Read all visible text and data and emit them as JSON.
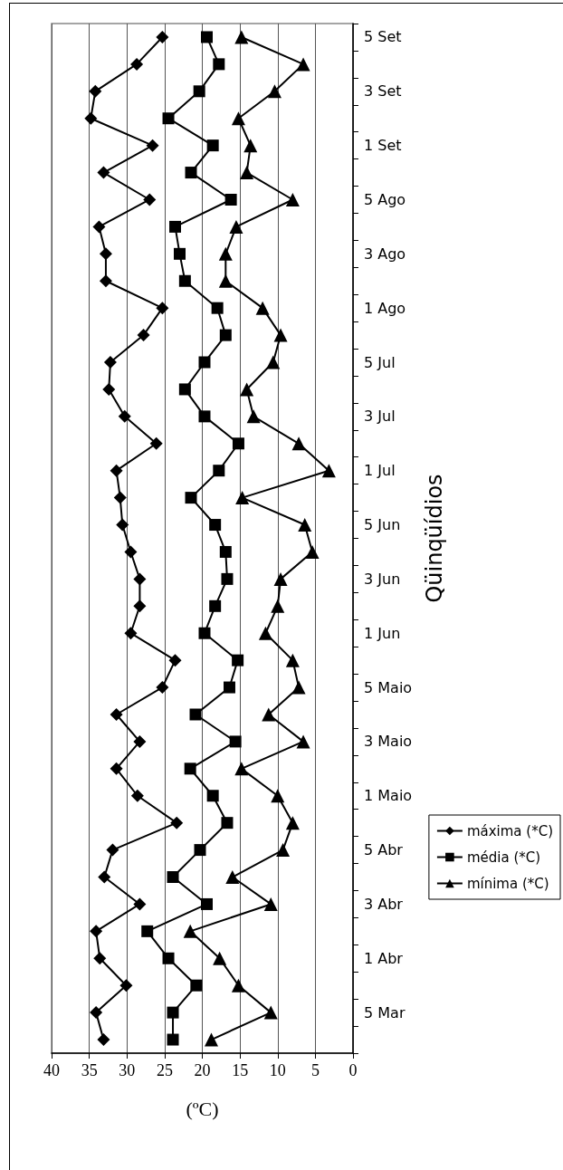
{
  "chart_data": {
    "type": "line",
    "orientation": "horizontal",
    "xlabel": "(ºC)",
    "ylabel": "Qüinqüídios",
    "categories": [
      "5 Set",
      null,
      "3 Set",
      null,
      "1 Set",
      null,
      "5 Ago",
      null,
      "3 Ago",
      null,
      "1 Ago",
      null,
      "5 Jul",
      null,
      "3 Jul",
      null,
      "1 Jul",
      null,
      "5 Jun",
      null,
      "3 Jun",
      null,
      "1 Jun",
      null,
      "5 Maio",
      null,
      "3 Maio",
      null,
      "1 Maio",
      null,
      "5 Abr",
      null,
      "3 Abr",
      null,
      "1 Abr",
      null,
      "5 Mar",
      null
    ],
    "series": [
      {
        "name": "máxima (*C)",
        "color": "#000000",
        "marker": "diamond",
        "values": [
          25.3,
          28.7,
          34.2,
          34.8,
          26.6,
          33.1,
          27.0,
          33.7,
          32.8,
          32.8,
          25.3,
          27.8,
          32.2,
          32.4,
          30.3,
          26.1,
          31.4,
          30.9,
          30.6,
          29.5,
          28.3,
          28.3,
          29.5,
          23.6,
          25.3,
          31.4,
          28.3,
          31.4,
          28.6,
          23.4,
          31.9,
          33.0,
          28.3,
          34.1,
          33.6,
          30.1,
          34.1,
          33.1
        ]
      },
      {
        "name": "média (*C)",
        "color": "#000000",
        "marker": "square",
        "values": [
          19.4,
          17.8,
          20.4,
          24.5,
          18.6,
          21.5,
          16.2,
          23.6,
          23.0,
          22.3,
          18.0,
          16.9,
          19.7,
          22.3,
          19.7,
          15.2,
          17.8,
          21.5,
          18.3,
          16.9,
          16.7,
          18.3,
          19.7,
          15.3,
          16.4,
          20.9,
          15.6,
          21.6,
          18.6,
          16.7,
          20.3,
          23.9,
          19.4,
          27.3,
          24.5,
          20.8,
          23.9,
          23.9
        ]
      },
      {
        "name": "mínima (*C)",
        "color": "#000000",
        "marker": "triangle",
        "values": [
          14.8,
          6.6,
          10.4,
          15.2,
          13.6,
          14.1,
          8.0,
          15.5,
          16.9,
          16.9,
          12.0,
          9.6,
          10.6,
          14.1,
          13.2,
          7.2,
          3.2,
          14.7,
          6.4,
          5.4,
          9.6,
          10.0,
          11.6,
          8.0,
          7.2,
          11.2,
          6.6,
          14.8,
          10.0,
          8.0,
          9.3,
          16.0,
          10.9,
          21.6,
          17.7,
          15.2,
          10.9,
          18.8
        ]
      }
    ],
    "xlim": [
      40,
      0
    ],
    "xticks": [
      40,
      35,
      30,
      25,
      20,
      15,
      10,
      5,
      0
    ],
    "grid": "x",
    "legend": "right",
    "line_style": "solid"
  }
}
